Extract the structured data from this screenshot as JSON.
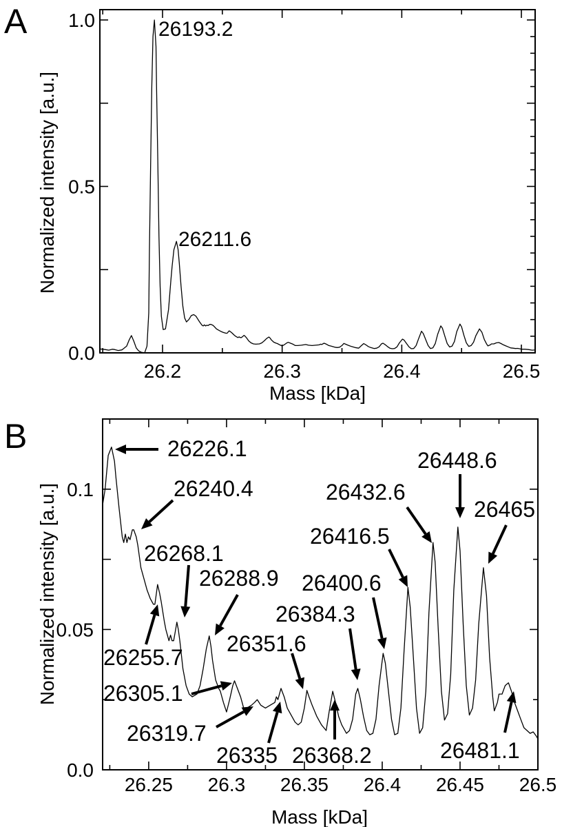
{
  "chart_data": [
    {
      "panel": "A",
      "type": "line",
      "xlabel": "Mass [kDa]",
      "ylabel": "Normalized intensity [a.u.]",
      "xlim": [
        26.1476,
        26.5115
      ],
      "ylim": [
        0,
        1.031
      ],
      "xticks": [
        26.2,
        26.3,
        26.4,
        26.5
      ],
      "xtick_labels": [
        "26.2",
        "26.3",
        "26.4",
        "26.5"
      ],
      "yticks": [
        0.0,
        0.5,
        1.0
      ],
      "ytick_labels": [
        "0.0",
        "0.5",
        "1.0"
      ],
      "grid": false,
      "annotations": [
        {
          "label": "26193.2",
          "mass": 26.1932,
          "intensity": 1.0
        },
        {
          "label": "26211.6",
          "mass": 26.2116,
          "intensity": 0.335
        }
      ]
    },
    {
      "panel": "B",
      "type": "line",
      "xlabel": "Mass [kDa]",
      "ylabel": "Normalized intensity [a.u.]",
      "xlim": [
        26.2204,
        26.5
      ],
      "ylim": [
        0,
        0.125
      ],
      "xticks": [
        26.25,
        26.3,
        26.35,
        26.4,
        26.45,
        26.5
      ],
      "xtick_labels": [
        "26.25",
        "26.3",
        "26.35",
        "26.4",
        "26.45",
        "26.5"
      ],
      "yticks": [
        0.0,
        0.05,
        0.1
      ],
      "ytick_labels": [
        "0.0",
        "0.05",
        "0.1"
      ],
      "grid": false,
      "annotations": [
        {
          "label": "26226.1",
          "mass": 26.2261,
          "intensity": 0.115
        },
        {
          "label": "26240.4",
          "mass": 26.2404,
          "intensity": 0.0855
        },
        {
          "label": "26268.1",
          "mass": 26.2681,
          "intensity": 0.0526
        },
        {
          "label": "26288.9",
          "mass": 26.2889,
          "intensity": 0.0477
        },
        {
          "label": "26255.7",
          "mass": 26.2557,
          "intensity": 0.066
        },
        {
          "label": "26305.1",
          "mass": 26.3051,
          "intensity": 0.0317
        },
        {
          "label": "26319.7",
          "mass": 26.3197,
          "intensity": 0.025
        },
        {
          "label": "26335",
          "mass": 26.335,
          "intensity": 0.029
        },
        {
          "label": "26368.2",
          "mass": 26.3682,
          "intensity": 0.028
        },
        {
          "label": "26351.6",
          "mass": 26.3516,
          "intensity": 0.0283
        },
        {
          "label": "26384.3",
          "mass": 26.3843,
          "intensity": 0.029
        },
        {
          "label": "26400.6",
          "mass": 26.4006,
          "intensity": 0.0415
        },
        {
          "label": "26416.5",
          "mass": 26.4165,
          "intensity": 0.065
        },
        {
          "label": "26432.6",
          "mass": 26.4326,
          "intensity": 0.081
        },
        {
          "label": "26448.6",
          "mass": 26.4486,
          "intensity": 0.0865
        },
        {
          "label": "26465",
          "mass": 26.465,
          "intensity": 0.072
        },
        {
          "label": "26481.1",
          "mass": 26.4811,
          "intensity": 0.031
        }
      ]
    }
  ],
  "spectrum": [
    [
      26.147,
      0.012
    ],
    [
      26.152,
      0.01
    ],
    [
      26.155,
      0.008
    ],
    [
      26.158,
      0.011
    ],
    [
      26.16,
      0.01
    ],
    [
      26.163,
      0.007
    ],
    [
      26.166,
      0.009
    ],
    [
      26.17,
      0.02
    ],
    [
      26.172,
      0.038
    ],
    [
      26.174,
      0.052
    ],
    [
      26.176,
      0.035
    ],
    [
      26.178,
      0.015
    ],
    [
      26.18,
      0.006
    ],
    [
      26.182,
      0.002
    ],
    [
      26.185,
      0.0
    ],
    [
      26.187,
      0.02
    ],
    [
      26.1885,
      0.12
    ],
    [
      26.189,
      0.3
    ],
    [
      26.19,
      0.55
    ],
    [
      26.191,
      0.8
    ],
    [
      26.192,
      0.95
    ],
    [
      26.1932,
      1.0
    ],
    [
      26.1945,
      0.92
    ],
    [
      26.195,
      0.8
    ],
    [
      26.196,
      0.58
    ],
    [
      26.197,
      0.35
    ],
    [
      26.198,
      0.2
    ],
    [
      26.199,
      0.11
    ],
    [
      26.2005,
      0.07
    ],
    [
      26.2025,
      0.072
    ],
    [
      26.205,
      0.13
    ],
    [
      26.207,
      0.22
    ],
    [
      26.208,
      0.26
    ],
    [
      26.2095,
      0.31
    ],
    [
      26.2116,
      0.335
    ],
    [
      26.213,
      0.31
    ],
    [
      26.214,
      0.27
    ],
    [
      26.2155,
      0.2
    ],
    [
      26.217,
      0.14
    ],
    [
      26.2185,
      0.105
    ],
    [
      26.22,
      0.093
    ],
    [
      26.222,
      0.1
    ],
    [
      26.224,
      0.112
    ],
    [
      26.2261,
      0.115
    ],
    [
      26.228,
      0.11
    ],
    [
      26.229,
      0.104
    ],
    [
      26.231,
      0.093
    ],
    [
      26.233,
      0.083
    ],
    [
      26.234,
      0.081
    ],
    [
      26.235,
      0.084
    ],
    [
      26.236,
      0.081
    ],
    [
      26.237,
      0.083
    ],
    [
      26.238,
      0.082
    ],
    [
      26.2395,
      0.0855
    ],
    [
      26.2404,
      0.0855
    ],
    [
      26.242,
      0.083
    ],
    [
      26.243,
      0.08
    ],
    [
      26.245,
      0.072
    ],
    [
      26.247,
      0.068
    ],
    [
      26.249,
      0.064
    ],
    [
      26.251,
      0.061
    ],
    [
      26.253,
      0.059
    ],
    [
      26.254,
      0.059
    ],
    [
      26.2557,
      0.066
    ],
    [
      26.257,
      0.063
    ],
    [
      26.258,
      0.06
    ],
    [
      26.26,
      0.053
    ],
    [
      26.261,
      0.05
    ],
    [
      26.263,
      0.046
    ],
    [
      26.264,
      0.048
    ],
    [
      26.265,
      0.046
    ],
    [
      26.266,
      0.046
    ],
    [
      26.267,
      0.049
    ],
    [
      26.2681,
      0.0526
    ],
    [
      26.269,
      0.05
    ],
    [
      26.27,
      0.046
    ],
    [
      26.272,
      0.036
    ],
    [
      26.274,
      0.03
    ],
    [
      26.276,
      0.027
    ],
    [
      26.278,
      0.026
    ],
    [
      26.281,
      0.027
    ],
    [
      26.283,
      0.03
    ],
    [
      26.285,
      0.036
    ],
    [
      26.287,
      0.043
    ],
    [
      26.2889,
      0.0477
    ],
    [
      26.29,
      0.044
    ],
    [
      26.291,
      0.039
    ],
    [
      26.293,
      0.032
    ],
    [
      26.295,
      0.029
    ],
    [
      26.296,
      0.028
    ],
    [
      26.298,
      0.024
    ],
    [
      26.3,
      0.0206
    ],
    [
      26.302,
      0.025
    ],
    [
      26.304,
      0.03
    ],
    [
      26.3051,
      0.0317
    ],
    [
      26.307,
      0.029
    ],
    [
      26.309,
      0.026
    ],
    [
      26.311,
      0.022
    ],
    [
      26.313,
      0.022
    ],
    [
      26.316,
      0.023
    ],
    [
      26.318,
      0.024
    ],
    [
      26.3197,
      0.025
    ],
    [
      26.322,
      0.023
    ],
    [
      26.325,
      0.022
    ],
    [
      26.328,
      0.023
    ],
    [
      26.331,
      0.024
    ],
    [
      26.332,
      0.026
    ],
    [
      26.333,
      0.025
    ],
    [
      26.335,
      0.029
    ],
    [
      26.337,
      0.026
    ],
    [
      26.339,
      0.022
    ],
    [
      26.341,
      0.02
    ],
    [
      26.344,
      0.017
    ],
    [
      26.346,
      0.016
    ],
    [
      26.348,
      0.017
    ],
    [
      26.35,
      0.022
    ],
    [
      26.3516,
      0.0283
    ],
    [
      26.353,
      0.026
    ],
    [
      26.355,
      0.023
    ],
    [
      26.358,
      0.019
    ],
    [
      26.361,
      0.016
    ],
    [
      26.364,
      0.014
    ],
    [
      26.366,
      0.021
    ],
    [
      26.3682,
      0.028
    ],
    [
      26.37,
      0.024
    ],
    [
      26.372,
      0.019
    ],
    [
      26.374,
      0.016
    ],
    [
      26.377,
      0.013
    ],
    [
      26.379,
      0.014
    ],
    [
      26.381,
      0.018
    ],
    [
      26.383,
      0.027
    ],
    [
      26.3843,
      0.029
    ],
    [
      26.386,
      0.025
    ],
    [
      26.388,
      0.019
    ],
    [
      26.39,
      0.014
    ],
    [
      26.392,
      0.0125
    ],
    [
      26.394,
      0.013
    ],
    [
      26.396,
      0.018
    ],
    [
      26.398,
      0.03
    ],
    [
      26.4006,
      0.0415
    ],
    [
      26.402,
      0.038
    ],
    [
      26.404,
      0.028
    ],
    [
      26.406,
      0.018
    ],
    [
      26.408,
      0.0125
    ],
    [
      26.41,
      0.013
    ],
    [
      26.412,
      0.022
    ],
    [
      26.414,
      0.042
    ],
    [
      26.4165,
      0.065
    ],
    [
      26.418,
      0.058
    ],
    [
      26.42,
      0.04
    ],
    [
      26.422,
      0.022
    ],
    [
      26.424,
      0.013
    ],
    [
      26.426,
      0.015
    ],
    [
      26.428,
      0.028
    ],
    [
      26.43,
      0.056
    ],
    [
      26.4326,
      0.081
    ],
    [
      26.434,
      0.074
    ],
    [
      26.436,
      0.05
    ],
    [
      26.438,
      0.028
    ],
    [
      26.44,
      0.0177
    ],
    [
      26.442,
      0.02
    ],
    [
      26.444,
      0.034
    ],
    [
      26.446,
      0.064
    ],
    [
      26.4486,
      0.0865
    ],
    [
      26.45,
      0.078
    ],
    [
      26.452,
      0.052
    ],
    [
      26.454,
      0.03
    ],
    [
      26.456,
      0.0195
    ],
    [
      26.458,
      0.022
    ],
    [
      26.46,
      0.032
    ],
    [
      26.462,
      0.052
    ],
    [
      26.465,
      0.072
    ],
    [
      26.467,
      0.062
    ],
    [
      26.469,
      0.04
    ],
    [
      26.471,
      0.026
    ],
    [
      26.472,
      0.021
    ],
    [
      26.474,
      0.024
    ],
    [
      26.475,
      0.027
    ],
    [
      26.477,
      0.027
    ],
    [
      26.479,
      0.03
    ],
    [
      26.4811,
      0.031
    ],
    [
      26.483,
      0.028
    ],
    [
      26.485,
      0.024
    ],
    [
      26.487,
      0.021
    ],
    [
      26.489,
      0.018
    ],
    [
      26.491,
      0.015
    ],
    [
      26.493,
      0.014
    ],
    [
      26.495,
      0.013
    ],
    [
      26.497,
      0.0135
    ],
    [
      26.499,
      0.012
    ],
    [
      26.5,
      0.011
    ],
    [
      26.503,
      0.011
    ],
    [
      26.506,
      0.01
    ],
    [
      26.509,
      0.008
    ],
    [
      26.512,
      0.009
    ]
  ],
  "panel_labels": [
    "A",
    "B"
  ]
}
